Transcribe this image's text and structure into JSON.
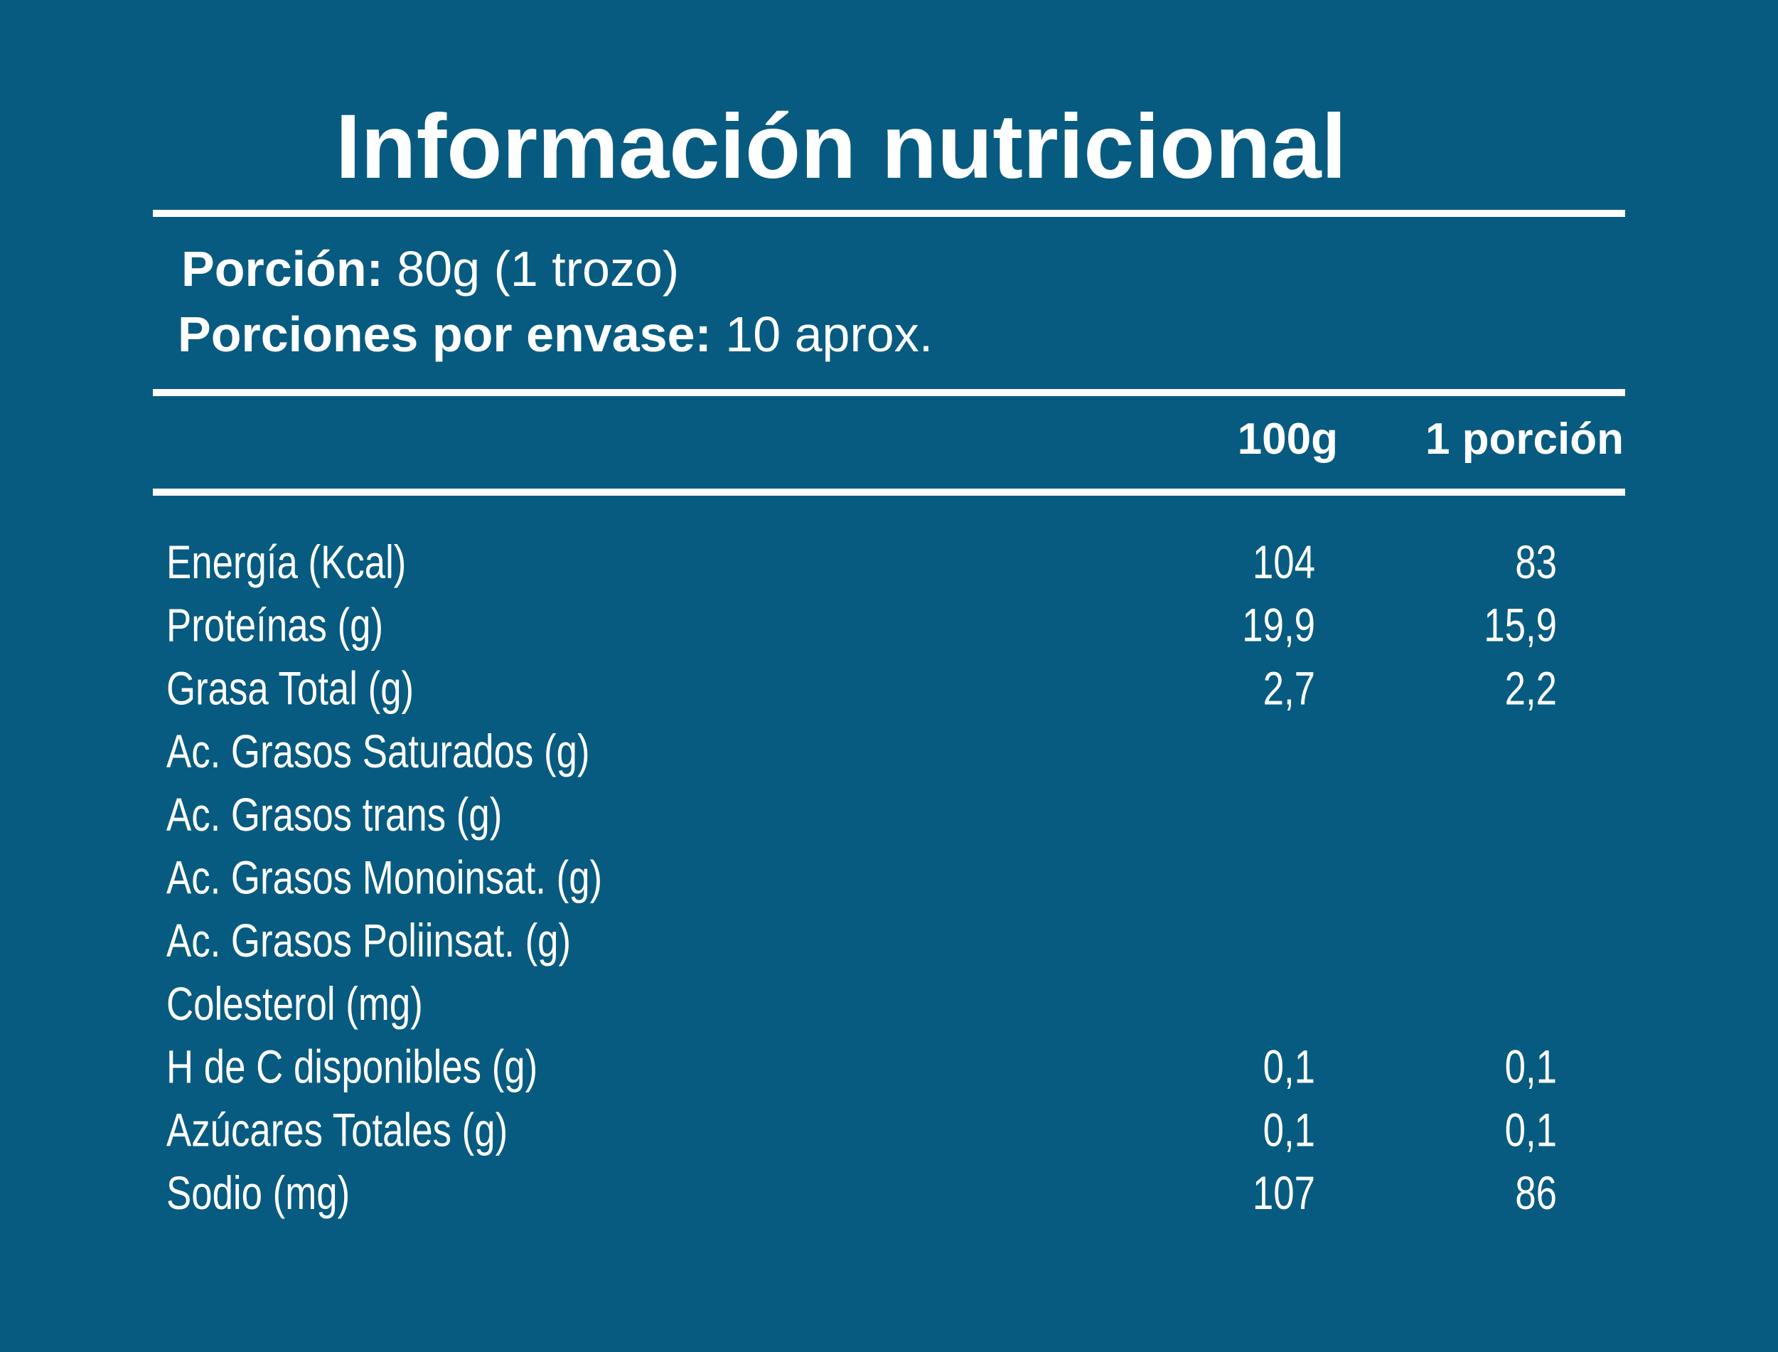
{
  "title": "Información nutricional",
  "serving": {
    "label": "Porción:",
    "value": "80g (1 trozo)"
  },
  "servings_per_package": {
    "label": "Porciones por envase:",
    "value": "10 aprox."
  },
  "table": {
    "columns": [
      "100g",
      "1 porción"
    ],
    "rows": [
      [
        "Energía (Kcal)",
        "104",
        "83"
      ],
      [
        "Proteínas (g)",
        "19,9",
        "15,9"
      ],
      [
        "Grasa Total (g)",
        "2,7",
        "2,2"
      ],
      [
        "Ac. Grasos Saturados (g)"
      ],
      [
        "Ac. Grasos trans (g)"
      ],
      [
        "Ac. Grasos Monoinsat. (g)"
      ],
      [
        "Ac. Grasos Poliinsat. (g)"
      ],
      [
        "Colesterol (mg)"
      ],
      [
        "H de C disponibles (g)",
        "0,1",
        "0,1"
      ],
      [
        "Azúcares Totales (g)",
        "0,1",
        "0,1"
      ],
      [
        "Sodio (mg)",
        "107",
        "86"
      ]
    ]
  }
}
